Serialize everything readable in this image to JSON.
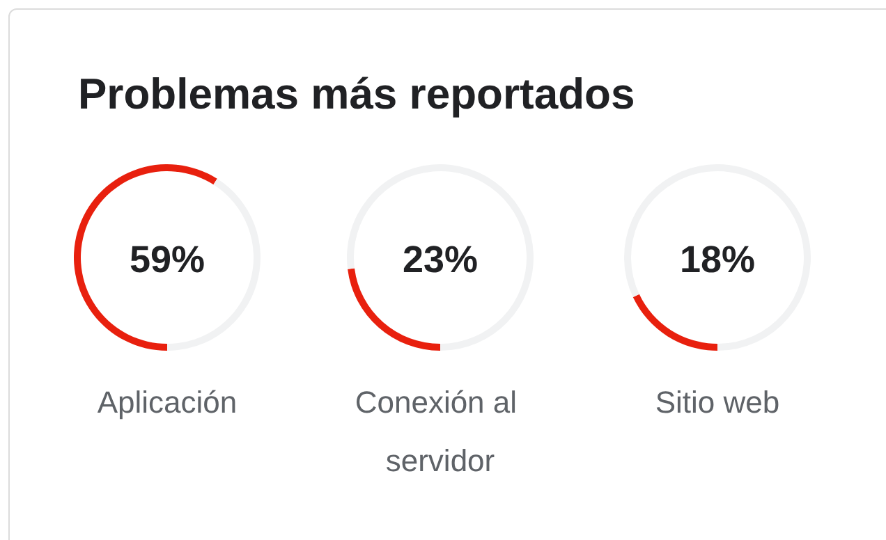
{
  "chart_data": [
    {
      "type": "other",
      "title": "Problemas más reportados"
    },
    {
      "type": "donut",
      "categories": [
        "Aplicación",
        null
      ],
      "values": [
        59,
        41
      ],
      "colors": [
        "#e8200e",
        "#f1f2f3"
      ],
      "value_labels": [
        "59%",
        null
      ]
    },
    {
      "type": "donut",
      "categories": [
        "Conexión al servidor",
        null
      ],
      "values": [
        23,
        77
      ],
      "colors": [
        "#e8200e",
        "#f1f2f3"
      ],
      "value_labels": [
        "23%",
        null
      ]
    },
    {
      "type": "donut",
      "categories": [
        "Sitio web",
        null
      ],
      "values": [
        18,
        82
      ],
      "colors": [
        "#e8200e",
        "#f1f2f3"
      ],
      "value_labels": [
        "18%",
        null
      ]
    }
  ]
}
